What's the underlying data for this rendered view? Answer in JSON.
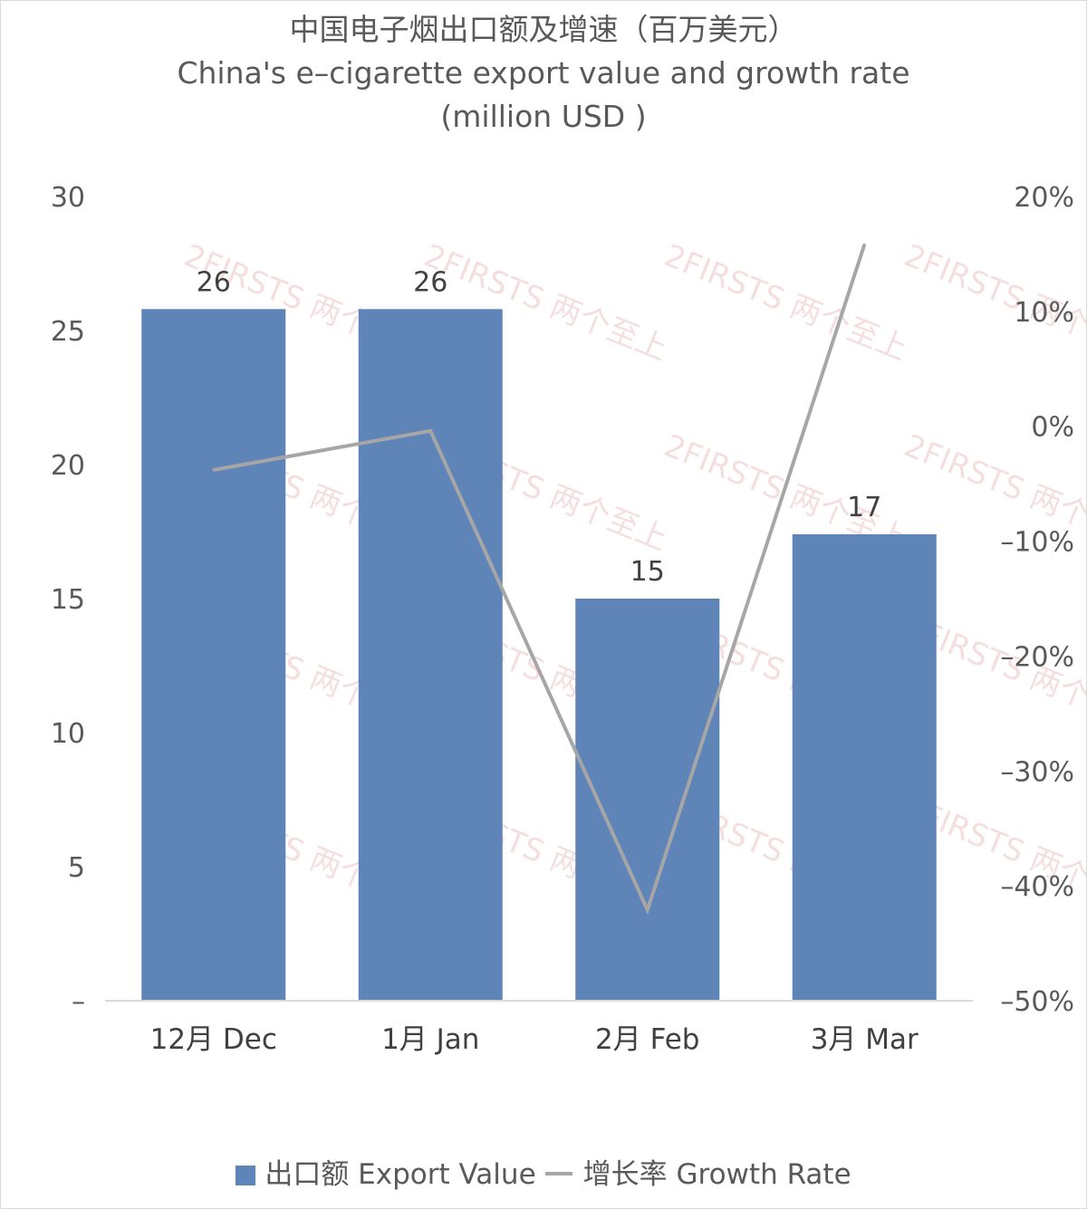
{
  "chart_data": {
    "type": "bar",
    "title_zh": "中国电子烟出口额及增速（百万美元）",
    "title_en": "China's e–cigarette export value and growth rate",
    "title_unit": "(million USD )",
    "categories": [
      "12月 Dec",
      "1月 Jan",
      "2月 Feb",
      "3月 Mar"
    ],
    "series": [
      {
        "name": "出口额 Export Value",
        "kind": "bar",
        "axis": "left",
        "color": "#5f84b8",
        "values": [
          25.8,
          25.8,
          15.0,
          17.4
        ],
        "labels": [
          "26",
          "26",
          "15",
          "17"
        ]
      },
      {
        "name": "增长率 Growth Rate",
        "kind": "line",
        "axis": "right",
        "color": "#a6a6a6",
        "values": [
          -3.8,
          -0.4,
          -42.1,
          15.8
        ]
      }
    ],
    "y_left": {
      "min": 0,
      "max": 30,
      "ticks": [
        "–",
        "5",
        "10",
        "15",
        "20",
        "25",
        "30"
      ]
    },
    "y_right": {
      "min": -50,
      "max": 20,
      "unit": "%",
      "ticks": [
        "–50%",
        "–40%",
        "–30%",
        "–20%",
        "–10%",
        "0%",
        "10%",
        "20%"
      ]
    },
    "grid": false,
    "legend_position": "bottom",
    "watermark": "2FIRSTS 两个至上"
  }
}
